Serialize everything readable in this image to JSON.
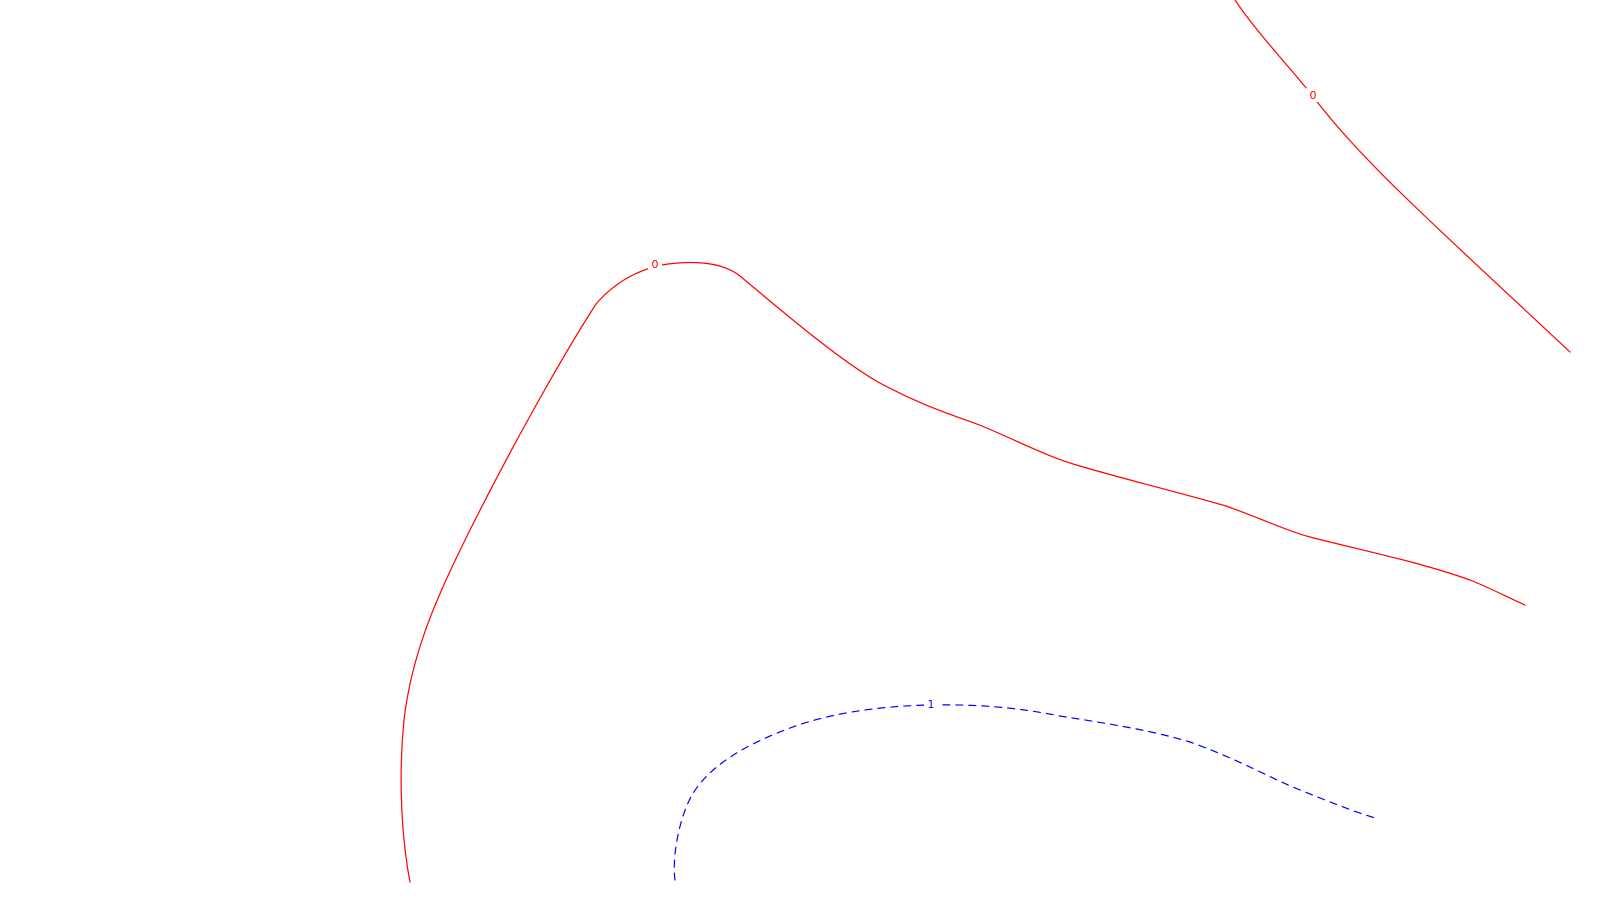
{
  "contours": [
    {
      "id": "contour-zero-top-right",
      "level_label": "0",
      "color": "#ff0000",
      "style": "solid"
    },
    {
      "id": "contour-zero-main",
      "level_label": "0",
      "color": "#ff0000",
      "style": "solid"
    },
    {
      "id": "contour-one",
      "level_label": "1",
      "color": "#0000ff",
      "style": "dashed"
    }
  ]
}
